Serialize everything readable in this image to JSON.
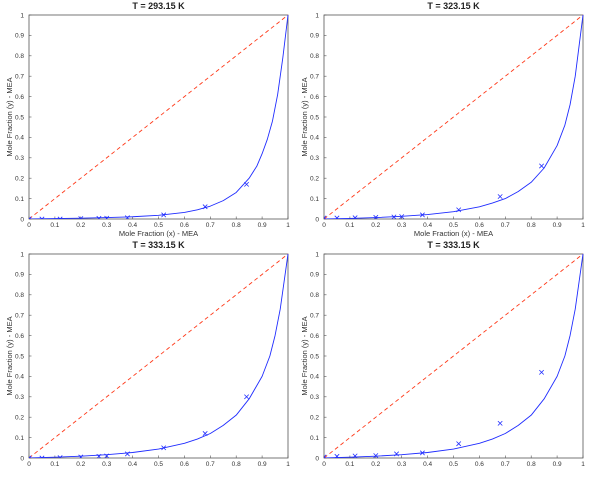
{
  "colors": {
    "diagonal": "#ff3a1a",
    "model_curve": "#1f2cff",
    "markers": "#1f2cff",
    "axes": "#555555"
  },
  "chart_data": [
    {
      "type": "line",
      "title": "T = 293.15 K",
      "xlabel": "Mole Fraction (x) - MEA",
      "ylabel": "Mole Fraction (y) - MEA",
      "xlim": [
        0,
        1
      ],
      "ylim": [
        0,
        1
      ],
      "xticks": [
        "0",
        "0.1",
        "0.2",
        "0.3",
        "0.4",
        "0.5",
        "0.6",
        "0.7",
        "0.8",
        "0.9",
        "1"
      ],
      "yticks": [
        "0",
        "0.1",
        "0.2",
        "0.3",
        "0.4",
        "0.5",
        "0.6",
        "0.7",
        "0.8",
        "0.9",
        "1"
      ],
      "grid": false,
      "series": [
        {
          "style": "dashed",
          "x": [
            0,
            1
          ],
          "y": [
            0,
            1
          ]
        },
        {
          "style": "solid",
          "x": [
            0,
            0.1,
            0.2,
            0.3,
            0.4,
            0.5,
            0.6,
            0.65,
            0.7,
            0.75,
            0.8,
            0.85,
            0.88,
            0.9,
            0.92,
            0.94,
            0.96,
            0.98,
            1.0
          ],
          "y": [
            0,
            0.002,
            0.004,
            0.007,
            0.011,
            0.018,
            0.032,
            0.045,
            0.063,
            0.09,
            0.13,
            0.2,
            0.26,
            0.32,
            0.39,
            0.48,
            0.61,
            0.79,
            1.0
          ]
        },
        {
          "style": "markers",
          "x": [
            0.0,
            0.05,
            0.12,
            0.2,
            0.27,
            0.3,
            0.38,
            0.52,
            0.68,
            0.84
          ],
          "y": [
            0.0,
            0.0,
            0.0,
            0.002,
            0.003,
            0.004,
            0.006,
            0.02,
            0.06,
            0.17
          ]
        }
      ]
    },
    {
      "type": "line",
      "title": "T = 323.15 K",
      "xlabel": "Mole Fraction (x) - MEA",
      "ylabel": "Mole Fraction (y) - MEA",
      "xlim": [
        0,
        1
      ],
      "ylim": [
        0,
        1
      ],
      "xticks": [
        "0",
        "0.1",
        "0.2",
        "0.3",
        "0.4",
        "0.5",
        "0.6",
        "0.7",
        "0.8",
        "0.9",
        "1"
      ],
      "yticks": [
        "0",
        "0.1",
        "0.2",
        "0.3",
        "0.4",
        "0.5",
        "0.6",
        "0.7",
        "0.8",
        "0.9",
        "1"
      ],
      "grid": false,
      "series": [
        {
          "style": "dashed",
          "x": [
            0,
            1
          ],
          "y": [
            0,
            1
          ]
        },
        {
          "style": "solid",
          "x": [
            0,
            0.1,
            0.2,
            0.3,
            0.4,
            0.5,
            0.6,
            0.65,
            0.7,
            0.75,
            0.8,
            0.85,
            0.9,
            0.93,
            0.95,
            0.97,
            0.99,
            1.0
          ],
          "y": [
            0,
            0.003,
            0.007,
            0.013,
            0.022,
            0.036,
            0.06,
            0.078,
            0.1,
            0.135,
            0.18,
            0.25,
            0.36,
            0.46,
            0.56,
            0.7,
            0.9,
            1.0
          ]
        },
        {
          "style": "markers",
          "x": [
            0.0,
            0.05,
            0.12,
            0.2,
            0.27,
            0.3,
            0.38,
            0.52,
            0.68,
            0.84
          ],
          "y": [
            0.005,
            0.005,
            0.006,
            0.008,
            0.01,
            0.012,
            0.02,
            0.045,
            0.11,
            0.26
          ]
        }
      ]
    },
    {
      "type": "line",
      "title": "T = 333.15 K",
      "xlabel": "",
      "ylabel": "Mole Fraction (y) - MEA",
      "xlim": [
        0,
        1
      ],
      "ylim": [
        0,
        1
      ],
      "xticks": [
        "0",
        "0.1",
        "0.2",
        "0.3",
        "0.4",
        "0.5",
        "0.6",
        "0.7",
        "0.8",
        "0.9",
        "1"
      ],
      "yticks": [
        "0",
        "0.1",
        "0.2",
        "0.3",
        "0.4",
        "0.5",
        "0.6",
        "0.7",
        "0.8",
        "0.9",
        "1"
      ],
      "grid": false,
      "series": [
        {
          "style": "dashed",
          "x": [
            0,
            1
          ],
          "y": [
            0,
            1
          ]
        },
        {
          "style": "solid",
          "x": [
            0,
            0.1,
            0.2,
            0.3,
            0.4,
            0.5,
            0.6,
            0.65,
            0.7,
            0.75,
            0.8,
            0.85,
            0.9,
            0.93,
            0.95,
            0.97,
            0.99,
            1.0
          ],
          "y": [
            0,
            0.004,
            0.009,
            0.016,
            0.027,
            0.044,
            0.072,
            0.093,
            0.12,
            0.16,
            0.21,
            0.29,
            0.4,
            0.5,
            0.6,
            0.73,
            0.91,
            1.0
          ]
        },
        {
          "style": "markers",
          "x": [
            0.0,
            0.05,
            0.12,
            0.2,
            0.27,
            0.3,
            0.38,
            0.52,
            0.68,
            0.84
          ],
          "y": [
            0.0,
            0.0,
            0.002,
            0.005,
            0.008,
            0.01,
            0.02,
            0.05,
            0.12,
            0.3
          ]
        }
      ]
    },
    {
      "type": "line",
      "title": "T = 333.15 K",
      "xlabel": "",
      "ylabel": "Mole Fraction (y) - MEA",
      "xlim": [
        0,
        1
      ],
      "ylim": [
        0,
        1
      ],
      "xticks": [
        "0",
        "0.1",
        "0.2",
        "0.3",
        "0.4",
        "0.5",
        "0.6",
        "0.7",
        "0.8",
        "0.9",
        "1"
      ],
      "yticks": [
        "0",
        "0.1",
        "0.2",
        "0.3",
        "0.4",
        "0.5",
        "0.6",
        "0.7",
        "0.8",
        "0.9",
        "1"
      ],
      "grid": false,
      "series": [
        {
          "style": "dashed",
          "x": [
            0,
            1
          ],
          "y": [
            0,
            1
          ]
        },
        {
          "style": "solid",
          "x": [
            0,
            0.1,
            0.2,
            0.3,
            0.4,
            0.5,
            0.6,
            0.65,
            0.7,
            0.75,
            0.8,
            0.85,
            0.9,
            0.93,
            0.95,
            0.97,
            0.99,
            1.0
          ],
          "y": [
            0,
            0.004,
            0.009,
            0.016,
            0.027,
            0.044,
            0.072,
            0.093,
            0.12,
            0.16,
            0.21,
            0.29,
            0.4,
            0.5,
            0.6,
            0.73,
            0.91,
            1.0
          ]
        },
        {
          "style": "markers",
          "x": [
            0.0,
            0.05,
            0.12,
            0.2,
            0.28,
            0.38,
            0.52,
            0.68,
            0.84
          ],
          "y": [
            0.005,
            0.008,
            0.01,
            0.012,
            0.02,
            0.025,
            0.07,
            0.17,
            0.42
          ]
        }
      ]
    }
  ]
}
